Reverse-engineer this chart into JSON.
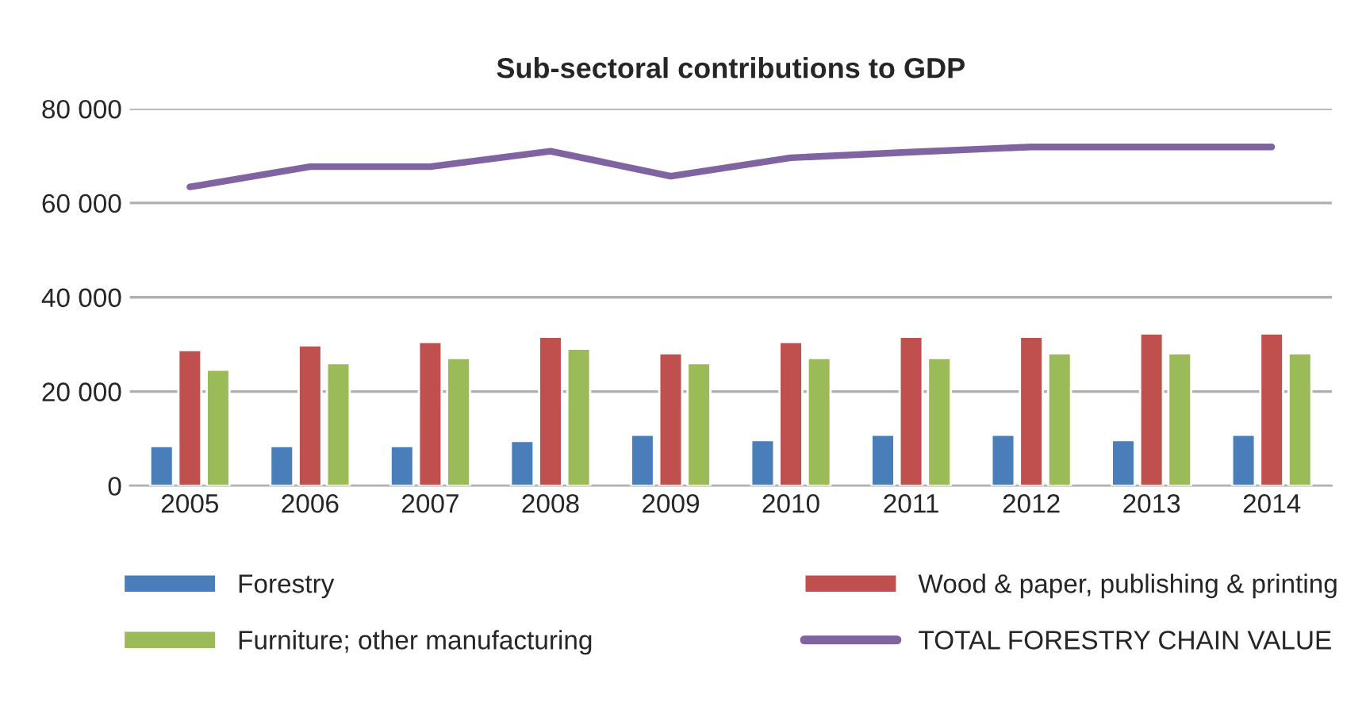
{
  "chart_data": {
    "type": "bar",
    "title": "Sub-sectoral contributions to GDP",
    "categories": [
      "2005",
      "2006",
      "2007",
      "2008",
      "2009",
      "2010",
      "2011",
      "2012",
      "2013",
      "2014"
    ],
    "series": [
      {
        "name": "Forestry",
        "color": "#4a7ebb",
        "values": [
          8400,
          8400,
          8400,
          9500,
          10800,
          9700,
          10800,
          10800,
          9700,
          10800
        ]
      },
      {
        "name": "Wood & paper, publishing & printing",
        "color": "#c0504d",
        "values": [
          28800,
          29800,
          30500,
          31600,
          28100,
          30500,
          31600,
          31600,
          32300,
          32300
        ]
      },
      {
        "name": "Furniture; other manufacturing",
        "color": "#9bbb59",
        "values": [
          24600,
          26000,
          27100,
          29100,
          26000,
          27100,
          27100,
          28100,
          28100,
          28100
        ]
      },
      {
        "name": "TOTAL FORESTRY CHAIN VALUE",
        "color": "#8064a2",
        "type": "line",
        "values": [
          63400,
          67700,
          67700,
          71000,
          65700,
          69600,
          70800,
          71900,
          71900,
          71900
        ]
      }
    ],
    "ylim": [
      0,
      80000
    ],
    "yticks": [
      {
        "value": 0,
        "label": "0"
      },
      {
        "value": 20000,
        "label": "20 000"
      },
      {
        "value": 40000,
        "label": "40 000"
      },
      {
        "value": 60000,
        "label": "60 000"
      },
      {
        "value": 80000,
        "label": "80 000"
      }
    ],
    "grid": "y",
    "legend": "bottom"
  }
}
